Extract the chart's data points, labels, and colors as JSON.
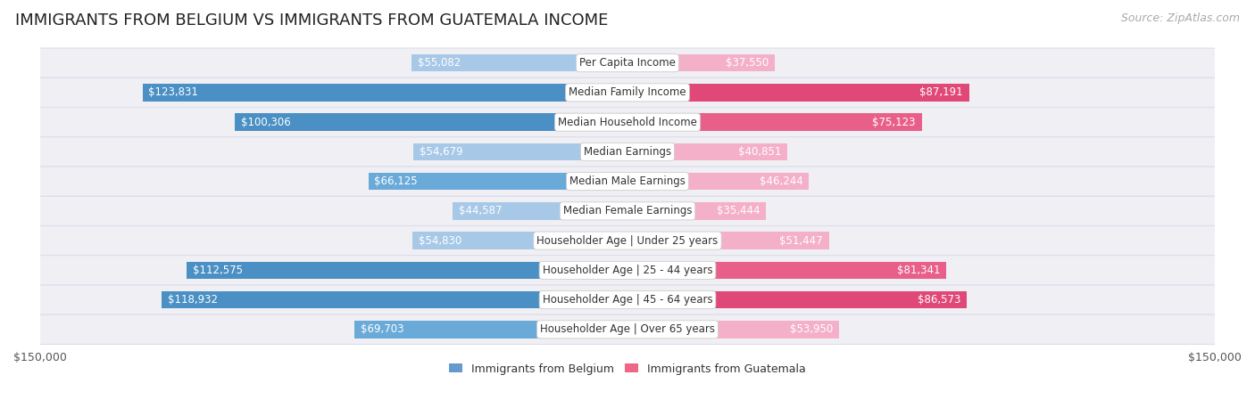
{
  "title": "IMMIGRANTS FROM BELGIUM VS IMMIGRANTS FROM GUATEMALA INCOME",
  "source": "Source: ZipAtlas.com",
  "categories": [
    "Per Capita Income",
    "Median Family Income",
    "Median Household Income",
    "Median Earnings",
    "Median Male Earnings",
    "Median Female Earnings",
    "Householder Age | Under 25 years",
    "Householder Age | 25 - 44 years",
    "Householder Age | 45 - 64 years",
    "Householder Age | Over 65 years"
  ],
  "belgium_values": [
    55082,
    123831,
    100306,
    54679,
    66125,
    44587,
    54830,
    112575,
    118932,
    69703
  ],
  "guatemala_values": [
    37550,
    87191,
    75123,
    40851,
    46244,
    35444,
    51447,
    81341,
    86573,
    53950
  ],
  "belgium_colors": [
    "#a8c8e8",
    "#4a90c4",
    "#5a9fd4",
    "#a8c8e8",
    "#90b8d8",
    "#b8d4ec",
    "#a8c8e8",
    "#4a90c4",
    "#4a90c4",
    "#7aacd0"
  ],
  "guatemala_colors": [
    "#f4b8cc",
    "#e8507a",
    "#e05878",
    "#f4b8cc",
    "#f0a0bc",
    "#f8ccd8",
    "#f0a8c0",
    "#e8507a",
    "#e04870",
    "#f0a0bc"
  ],
  "belgium_color_legend": "#6699cc",
  "guatemala_color_legend": "#ee6688",
  "max_value": 150000,
  "background_color": "#ffffff",
  "row_bg_color": "#f0f0f4",
  "row_border_color": "#ddddee",
  "title_fontsize": 13,
  "label_fontsize": 8.5,
  "category_fontsize": 8.5,
  "axis_label_fontsize": 9,
  "legend_fontsize": 9,
  "source_fontsize": 9,
  "inside_label_threshold": 0.2
}
